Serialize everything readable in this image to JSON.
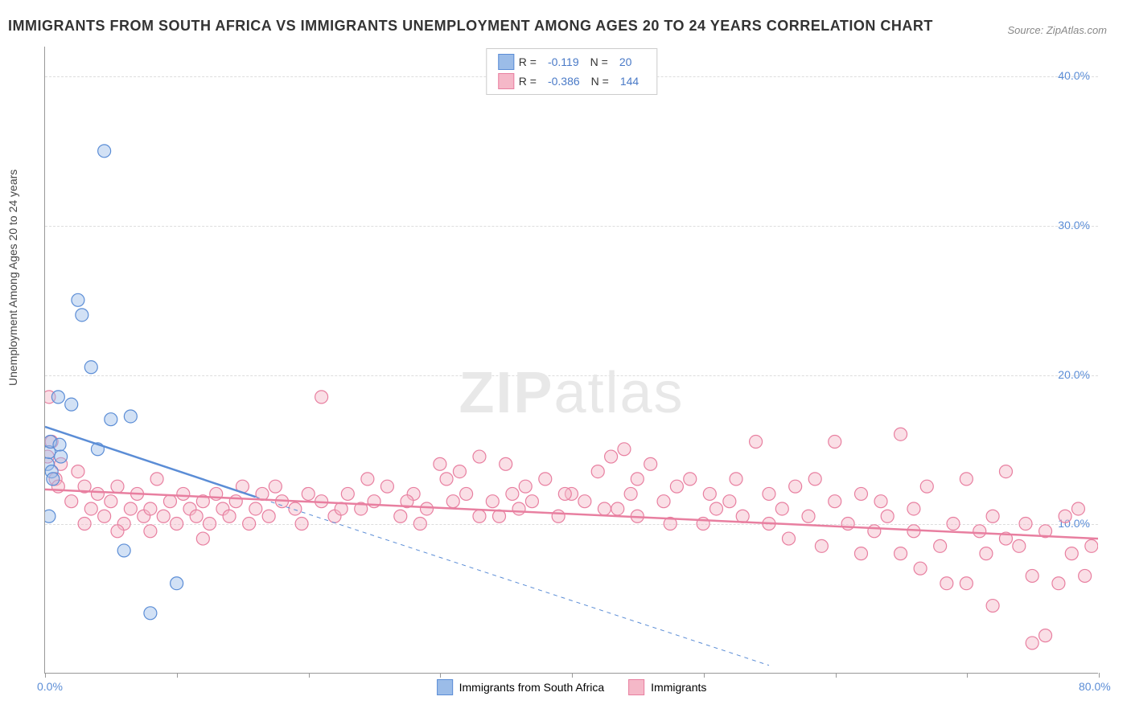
{
  "title": "IMMIGRANTS FROM SOUTH AFRICA VS IMMIGRANTS UNEMPLOYMENT AMONG AGES 20 TO 24 YEARS CORRELATION CHART",
  "source": "Source: ZipAtlas.com",
  "watermark_bold": "ZIP",
  "watermark_light": "atlas",
  "y_axis_label": "Unemployment Among Ages 20 to 24 years",
  "chart": {
    "type": "scatter",
    "xlim": [
      0,
      80
    ],
    "ylim": [
      0,
      42
    ],
    "y_ticks": [
      10,
      20,
      30,
      40
    ],
    "y_tick_labels": [
      "10.0%",
      "20.0%",
      "30.0%",
      "40.0%"
    ],
    "x_ticks": [
      0,
      10,
      20,
      30,
      40,
      50,
      60,
      70,
      80
    ],
    "x_tick_labels_shown": {
      "0": "0.0%",
      "80": "80.0%"
    },
    "background_color": "#ffffff",
    "grid_color": "#dddddd",
    "axis_color": "#999999",
    "tick_label_color": "#5B8DD6",
    "marker_radius": 8,
    "marker_opacity": 0.45,
    "series": [
      {
        "name": "Immigrants from South Africa",
        "color_fill": "#9BBCE8",
        "color_stroke": "#5B8DD6",
        "R": "-0.119",
        "N": "20",
        "trend": {
          "x1": 0,
          "y1": 16.5,
          "x2": 16,
          "y2": 11.8,
          "dash_continue_x": 55,
          "dash_continue_y": 0.5
        },
        "points": [
          [
            0.2,
            14.0
          ],
          [
            0.3,
            14.8
          ],
          [
            0.4,
            15.5
          ],
          [
            0.5,
            13.5
          ],
          [
            0.6,
            13.0
          ],
          [
            0.3,
            10.5
          ],
          [
            1.0,
            18.5
          ],
          [
            1.1,
            15.3
          ],
          [
            1.2,
            14.5
          ],
          [
            2.5,
            25.0
          ],
          [
            2.8,
            24.0
          ],
          [
            4.5,
            35.0
          ],
          [
            3.5,
            20.5
          ],
          [
            5.0,
            17.0
          ],
          [
            6.5,
            17.2
          ],
          [
            4.0,
            15.0
          ],
          [
            6.0,
            8.2
          ],
          [
            8.0,
            4.0
          ],
          [
            10.0,
            6.0
          ],
          [
            2.0,
            18.0
          ]
        ]
      },
      {
        "name": "Immigrants",
        "color_fill": "#F5B8C8",
        "color_stroke": "#E87FA0",
        "R": "-0.386",
        "N": "144",
        "trend": {
          "x1": 0,
          "y1": 12.3,
          "x2": 80,
          "y2": 9.0
        },
        "points": [
          [
            0.2,
            14.5
          ],
          [
            0.3,
            18.5
          ],
          [
            0.5,
            15.5
          ],
          [
            0.8,
            13.0
          ],
          [
            1.0,
            12.5
          ],
          [
            1.2,
            14.0
          ],
          [
            2.0,
            11.5
          ],
          [
            2.5,
            13.5
          ],
          [
            3.0,
            10.0
          ],
          [
            3.5,
            11.0
          ],
          [
            4.0,
            12.0
          ],
          [
            4.5,
            10.5
          ],
          [
            5.0,
            11.5
          ],
          [
            5.5,
            12.5
          ],
          [
            6.0,
            10.0
          ],
          [
            6.5,
            11.0
          ],
          [
            7.0,
            12.0
          ],
          [
            7.5,
            10.5
          ],
          [
            8.0,
            11.0
          ],
          [
            8.5,
            13.0
          ],
          [
            9.0,
            10.5
          ],
          [
            9.5,
            11.5
          ],
          [
            10.0,
            10.0
          ],
          [
            10.5,
            12.0
          ],
          [
            11.0,
            11.0
          ],
          [
            11.5,
            10.5
          ],
          [
            12.0,
            11.5
          ],
          [
            12.5,
            10.0
          ],
          [
            13.0,
            12.0
          ],
          [
            13.5,
            11.0
          ],
          [
            14.0,
            10.5
          ],
          [
            14.5,
            11.5
          ],
          [
            15.0,
            12.5
          ],
          [
            15.5,
            10.0
          ],
          [
            16.0,
            11.0
          ],
          [
            16.5,
            12.0
          ],
          [
            17.0,
            10.5
          ],
          [
            18.0,
            11.5
          ],
          [
            19.0,
            11.0
          ],
          [
            20.0,
            12.0
          ],
          [
            21.0,
            18.5
          ],
          [
            21.0,
            11.5
          ],
          [
            22.0,
            10.5
          ],
          [
            23.0,
            12.0
          ],
          [
            24.0,
            11.0
          ],
          [
            25.0,
            11.5
          ],
          [
            26.0,
            12.5
          ],
          [
            27.0,
            10.5
          ],
          [
            28.0,
            12.0
          ],
          [
            29.0,
            11.0
          ],
          [
            30.0,
            14.0
          ],
          [
            30.5,
            13.0
          ],
          [
            31.0,
            11.5
          ],
          [
            32.0,
            12.0
          ],
          [
            33.0,
            14.5
          ],
          [
            33.0,
            10.5
          ],
          [
            34.0,
            11.5
          ],
          [
            35.0,
            14.0
          ],
          [
            35.5,
            12.0
          ],
          [
            36.0,
            11.0
          ],
          [
            37.0,
            11.5
          ],
          [
            38.0,
            13.0
          ],
          [
            39.0,
            10.5
          ],
          [
            40.0,
            12.0
          ],
          [
            41.0,
            11.5
          ],
          [
            42.0,
            13.5
          ],
          [
            42.5,
            11.0
          ],
          [
            43.0,
            14.5
          ],
          [
            44.0,
            15.0
          ],
          [
            44.5,
            12.0
          ],
          [
            45.0,
            13.0
          ],
          [
            45.0,
            10.5
          ],
          [
            46.0,
            14.0
          ],
          [
            47.0,
            11.5
          ],
          [
            48.0,
            12.5
          ],
          [
            49.0,
            13.0
          ],
          [
            50.0,
            10.0
          ],
          [
            50.5,
            12.0
          ],
          [
            51.0,
            11.0
          ],
          [
            52.0,
            11.5
          ],
          [
            53.0,
            10.5
          ],
          [
            54.0,
            15.5
          ],
          [
            55.0,
            12.0
          ],
          [
            55.0,
            10.0
          ],
          [
            56.0,
            11.0
          ],
          [
            57.0,
            12.5
          ],
          [
            58.0,
            10.5
          ],
          [
            59.0,
            8.5
          ],
          [
            60.0,
            11.5
          ],
          [
            61.0,
            10.0
          ],
          [
            62.0,
            12.0
          ],
          [
            63.0,
            9.5
          ],
          [
            64.0,
            10.5
          ],
          [
            65.0,
            16.0
          ],
          [
            65.0,
            8.0
          ],
          [
            66.0,
            11.0
          ],
          [
            66.0,
            9.5
          ],
          [
            67.0,
            12.5
          ],
          [
            68.0,
            8.5
          ],
          [
            69.0,
            10.0
          ],
          [
            70.0,
            13.0
          ],
          [
            70.0,
            6.0
          ],
          [
            71.0,
            9.5
          ],
          [
            71.5,
            8.0
          ],
          [
            72.0,
            10.5
          ],
          [
            72.0,
            4.5
          ],
          [
            73.0,
            13.5
          ],
          [
            73.0,
            9.0
          ],
          [
            74.0,
            8.5
          ],
          [
            74.5,
            10.0
          ],
          [
            75.0,
            6.5
          ],
          [
            75.0,
            2.0
          ],
          [
            76.0,
            9.5
          ],
          [
            76.0,
            2.5
          ],
          [
            77.0,
            6.0
          ],
          [
            77.5,
            10.5
          ],
          [
            78.0,
            8.0
          ],
          [
            78.5,
            11.0
          ],
          [
            79.0,
            6.5
          ],
          [
            79.5,
            8.5
          ],
          [
            60.0,
            15.5
          ],
          [
            62.0,
            8.0
          ],
          [
            66.5,
            7.0
          ],
          [
            68.5,
            6.0
          ],
          [
            8.0,
            9.5
          ],
          [
            12.0,
            9.0
          ],
          [
            5.5,
            9.5
          ],
          [
            3.0,
            12.5
          ],
          [
            17.5,
            12.5
          ],
          [
            19.5,
            10.0
          ],
          [
            24.5,
            13.0
          ],
          [
            27.5,
            11.5
          ],
          [
            31.5,
            13.5
          ],
          [
            36.5,
            12.5
          ],
          [
            39.5,
            12.0
          ],
          [
            43.5,
            11.0
          ],
          [
            47.5,
            10.0
          ],
          [
            52.5,
            13.0
          ],
          [
            56.5,
            9.0
          ],
          [
            58.5,
            13.0
          ],
          [
            63.5,
            11.5
          ],
          [
            22.5,
            11.0
          ],
          [
            28.5,
            10.0
          ],
          [
            34.5,
            10.5
          ]
        ]
      }
    ]
  },
  "legend_bottom": [
    {
      "label": "Immigrants from South Africa",
      "fill": "#9BBCE8",
      "stroke": "#5B8DD6"
    },
    {
      "label": "Immigrants",
      "fill": "#F5B8C8",
      "stroke": "#E87FA0"
    }
  ]
}
